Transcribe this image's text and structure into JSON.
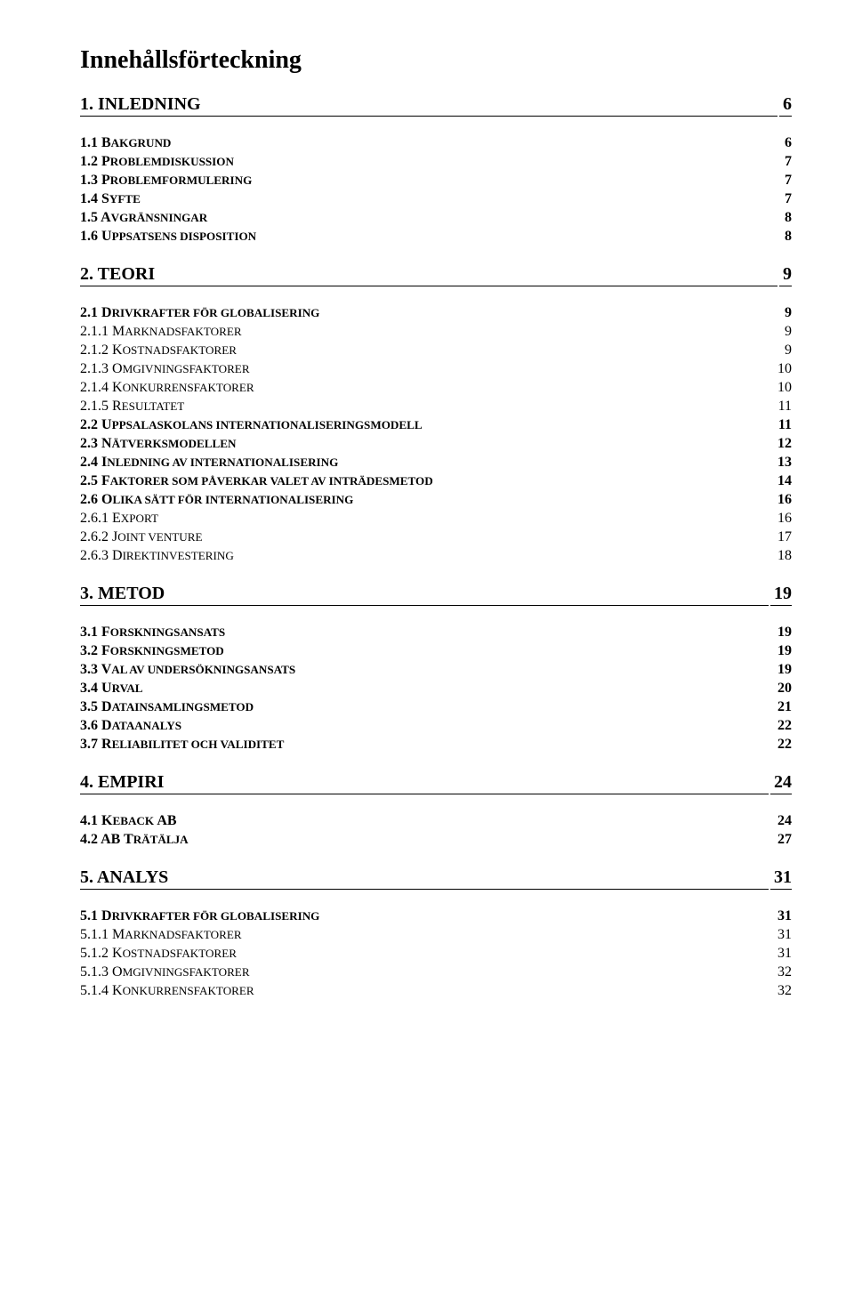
{
  "title": "Innehållsförteckning",
  "sections": [
    {
      "heading_prefix": "1. INLEDNING",
      "heading_page": "6",
      "items": [
        {
          "level": 1,
          "prefix": "1.1 B",
          "rest": "AKGRUND",
          "page": "6"
        },
        {
          "level": 1,
          "prefix": "1.2 P",
          "rest": "ROBLEMDISKUSSION",
          "page": "7"
        },
        {
          "level": 1,
          "prefix": "1.3 P",
          "rest": "ROBLEMFORMULERING",
          "page": "7"
        },
        {
          "level": 1,
          "prefix": "1.4 S",
          "rest": "YFTE",
          "page": "7"
        },
        {
          "level": 1,
          "prefix": "1.5 A",
          "rest": "VGRÄNSNINGAR",
          "page": "8"
        },
        {
          "level": 1,
          "prefix": "1.6 U",
          "rest": "PPSATSENS DISPOSITION",
          "page": "8"
        }
      ]
    },
    {
      "heading_prefix": "2. TEORI",
      "heading_page": "9",
      "items": [
        {
          "level": 1,
          "prefix": "2.1 D",
          "rest": "RIVKRAFTER FÖR GLOBALISERING",
          "page": "9"
        },
        {
          "level": 2,
          "prefix": "2.1.1 M",
          "rest": "ARKNADSFAKTORER",
          "page": "9"
        },
        {
          "level": 2,
          "prefix": "2.1.2 K",
          "rest": "OSTNADSFAKTORER",
          "page": "9"
        },
        {
          "level": 2,
          "prefix": "2.1.3 O",
          "rest": "MGIVNINGSFAKTORER",
          "page": "10"
        },
        {
          "level": 2,
          "prefix": "2.1.4 K",
          "rest": "ONKURRENSFAKTORER",
          "page": "10"
        },
        {
          "level": 2,
          "prefix": "2.1.5 R",
          "rest": "ESULTATET",
          "page": "11"
        },
        {
          "level": 1,
          "prefix": "2.2 U",
          "rest": "PPSALASKOLANS INTERNATIONALISERINGSMODELL",
          "page": "11"
        },
        {
          "level": 1,
          "prefix": "2.3 N",
          "rest": "ÄTVERKSMODELLEN",
          "page": "12"
        },
        {
          "level": 1,
          "prefix": "2.4 I",
          "rest": "NLEDNING AV INTERNATIONALISERING",
          "page": "13"
        },
        {
          "level": 1,
          "prefix": "2.5 F",
          "rest": "AKTORER SOM PÅVERKAR VALET AV INTRÄDESMETOD",
          "page": "14"
        },
        {
          "level": 1,
          "prefix": "2.6 O",
          "rest": "LIKA SÄTT FÖR INTERNATIONALISERING",
          "page": "16"
        },
        {
          "level": 2,
          "prefix": "2.6.1 E",
          "rest": "XPORT",
          "page": "16"
        },
        {
          "level": 2,
          "prefix": "2.6.2 J",
          "rest": "OINT VENTURE",
          "page": "17"
        },
        {
          "level": 2,
          "prefix": "2.6.3 D",
          "rest": "IREKTINVESTERING",
          "page": "18"
        }
      ]
    },
    {
      "heading_prefix": "3. METOD",
      "heading_page": "19",
      "items": [
        {
          "level": 1,
          "prefix": "3.1 F",
          "rest": "ORSKNINGSANSATS",
          "page": "19"
        },
        {
          "level": 1,
          "prefix": "3.2 F",
          "rest": "ORSKNINGSMETOD",
          "page": "19"
        },
        {
          "level": 1,
          "prefix": "3.3 V",
          "rest": "AL AV UNDERSÖKNINGSANSATS",
          "page": "19"
        },
        {
          "level": 1,
          "prefix": "3.4 U",
          "rest": "RVAL",
          "page": "20"
        },
        {
          "level": 1,
          "prefix": "3.5 D",
          "rest": "ATAINSAMLINGSMETOD",
          "page": "21"
        },
        {
          "level": 1,
          "prefix": "3.6 D",
          "rest": "ATAANALYS",
          "page": "22"
        },
        {
          "level": 1,
          "prefix": "3.7 R",
          "rest": "ELIABILITET OCH VALIDITET",
          "page": "22"
        }
      ]
    },
    {
      "heading_prefix": "4. EMPIRI",
      "heading_page": "24",
      "items": [
        {
          "level": 1,
          "prefix": "4.1 K",
          "rest": "EBACK ",
          "tail": "AB",
          "page": "24"
        },
        {
          "level": 1,
          "prefix": "4.2 AB T",
          "rest": "RÄTÄLJA",
          "page": "27"
        }
      ]
    },
    {
      "heading_prefix": "5. ANALYS",
      "heading_page": "31",
      "items": [
        {
          "level": 1,
          "prefix": "5.1 D",
          "rest": "RIVKRAFTER FÖR GLOBALISERING",
          "page": "31"
        },
        {
          "level": 2,
          "prefix": "5.1.1 M",
          "rest": "ARKNADSFAKTORER",
          "page": "31"
        },
        {
          "level": 2,
          "prefix": "5.1.2 K",
          "rest": "OSTNADSFAKTORER",
          "page": "31"
        },
        {
          "level": 2,
          "prefix": "5.1.3 O",
          "rest": "MGIVNINGSFAKTORER",
          "page": "32"
        },
        {
          "level": 2,
          "prefix": "5.1.4 K",
          "rest": "ONKURRENSFAKTORER",
          "page": "32"
        }
      ]
    }
  ]
}
